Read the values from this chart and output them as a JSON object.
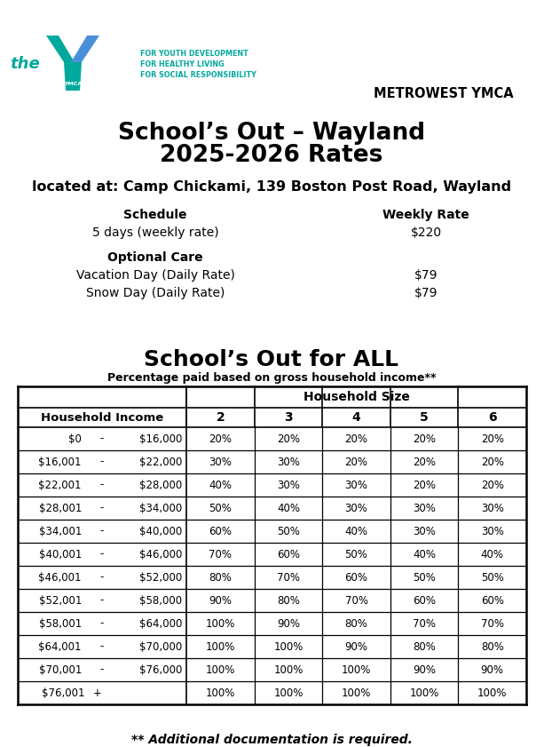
{
  "title_line1": "School’s Out – Wayland",
  "title_line2": "2025-2026 Rates",
  "metrowest": "METROWEST YMCA",
  "location": "located at: Camp Chickami, 139 Boston Post Road, Wayland",
  "schedule_header": "Schedule",
  "weekly_rate_header": "Weekly Rate",
  "schedule_row": "5 days (weekly rate)",
  "weekly_rate_val": "$220",
  "optional_care_header": "Optional Care",
  "optional_rows": [
    [
      "Vacation Day (Daily Rate)",
      "$79"
    ],
    [
      "Snow Day (Daily Rate)",
      "$79"
    ]
  ],
  "sofa_title": "School’s Out for ALL",
  "sofa_subtitle": "Percentage paid based on gross household income**",
  "table_col_header1": "Household Income",
  "table_col_headers": [
    "2",
    "3",
    "4",
    "5",
    "6"
  ],
  "household_size_label": "Household Size",
  "income_ranges": [
    [
      "$0",
      "-",
      "$16,000"
    ],
    [
      "$16,001",
      "-",
      "$22,000"
    ],
    [
      "$22,001",
      "-",
      "$28,000"
    ],
    [
      "$28,001",
      "-",
      "$34,000"
    ],
    [
      "$34,001",
      "-",
      "$40,000"
    ],
    [
      "$40,001",
      "-",
      "$46,000"
    ],
    [
      "$46,001",
      "-",
      "$52,000"
    ],
    [
      "$52,001",
      "-",
      "$58,000"
    ],
    [
      "$58,001",
      "-",
      "$64,000"
    ],
    [
      "$64,001",
      "-",
      "$70,000"
    ],
    [
      "$70,001",
      "-",
      "$76,000"
    ],
    [
      "$76,001",
      "+",
      ""
    ]
  ],
  "percentages": [
    [
      "20%",
      "20%",
      "20%",
      "20%",
      "20%"
    ],
    [
      "30%",
      "30%",
      "20%",
      "20%",
      "20%"
    ],
    [
      "40%",
      "30%",
      "30%",
      "20%",
      "20%"
    ],
    [
      "50%",
      "40%",
      "30%",
      "30%",
      "30%"
    ],
    [
      "60%",
      "50%",
      "40%",
      "30%",
      "30%"
    ],
    [
      "70%",
      "60%",
      "50%",
      "40%",
      "40%"
    ],
    [
      "80%",
      "70%",
      "60%",
      "50%",
      "50%"
    ],
    [
      "90%",
      "80%",
      "70%",
      "60%",
      "60%"
    ],
    [
      "100%",
      "90%",
      "80%",
      "70%",
      "70%"
    ],
    [
      "100%",
      "100%",
      "90%",
      "80%",
      "80%"
    ],
    [
      "100%",
      "100%",
      "100%",
      "90%",
      "90%"
    ],
    [
      "100%",
      "100%",
      "100%",
      "100%",
      "100%"
    ]
  ],
  "footnote": "** Additional documentation is required.",
  "bg_color": "#ffffff",
  "text_color": "#000000",
  "ymca_teal": "#00a99d",
  "ymca_blue": "#4a90d9",
  "taglines": [
    "FOR YOUTH DEVELOPMENT",
    "FOR HEALTHY LIVING",
    "FOR SOCIAL RESPONSIBILITY"
  ]
}
